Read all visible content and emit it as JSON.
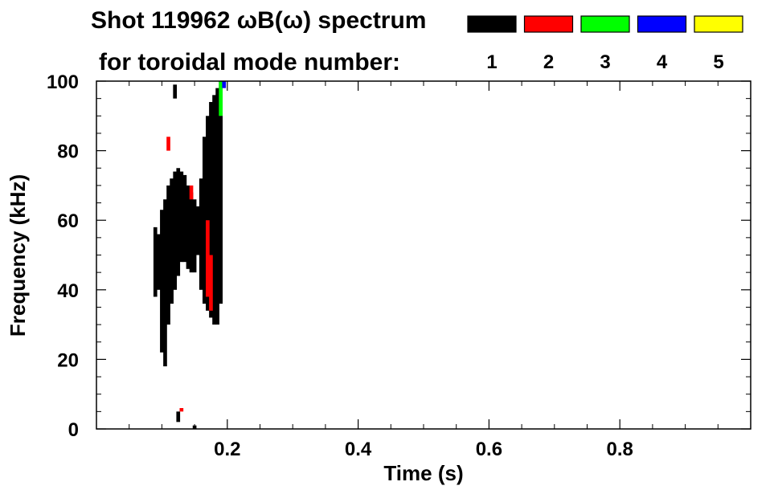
{
  "chart_data": {
    "type": "heatmap",
    "title_line1": "Shot 119962 ωB(ω) spectrum",
    "title_line2": "for toroidal mode number:",
    "xlabel": "Time (s)",
    "ylabel": "Frequency (kHz)",
    "xlim": [
      0,
      1.0
    ],
    "ylim": [
      0,
      100
    ],
    "x_ticks": [
      0.2,
      0.4,
      0.6,
      0.8
    ],
    "x_tick_labels": [
      "0.2",
      "0.4",
      "0.6",
      "0.8"
    ],
    "y_ticks": [
      0,
      20,
      40,
      60,
      80,
      100
    ],
    "y_tick_labels": [
      "0",
      "20",
      "40",
      "60",
      "80",
      "100"
    ],
    "legend": {
      "placement": "top-right",
      "entries": [
        {
          "label": "1",
          "color": "#000000"
        },
        {
          "label": "2",
          "color": "#ff0000"
        },
        {
          "label": "3",
          "color": "#00ff00"
        },
        {
          "label": "4",
          "color": "#0000ff"
        },
        {
          "label": "5",
          "color": "#ffff00"
        }
      ]
    },
    "series": [
      {
        "name": "1",
        "color": "#000000",
        "segments": [
          {
            "t": 0.09,
            "f": [
              38,
              58
            ]
          },
          {
            "t": 0.095,
            "f": [
              40,
              56
            ]
          },
          {
            "t": 0.1,
            "f": [
              22,
              63
            ]
          },
          {
            "t": 0.105,
            "f": [
              18,
              66
            ]
          },
          {
            "t": 0.11,
            "f": [
              30,
              70
            ]
          },
          {
            "t": 0.115,
            "f": [
              36,
              72
            ]
          },
          {
            "t": 0.12,
            "f": [
              40,
              74
            ]
          },
          {
            "t": 0.125,
            "f": [
              44,
              75
            ]
          },
          {
            "t": 0.13,
            "f": [
              48,
              74
            ]
          },
          {
            "t": 0.135,
            "f": [
              48,
              73
            ]
          },
          {
            "t": 0.14,
            "f": [
              46,
              70
            ]
          },
          {
            "t": 0.145,
            "f": [
              45,
              68
            ]
          },
          {
            "t": 0.15,
            "f": [
              45,
              66
            ]
          },
          {
            "t": 0.155,
            "f": [
              50,
              64
            ]
          },
          {
            "t": 0.16,
            "f": [
              40,
              72
            ]
          },
          {
            "t": 0.165,
            "f": [
              36,
              84
            ]
          },
          {
            "t": 0.17,
            "f": [
              34,
              90
            ]
          },
          {
            "t": 0.175,
            "f": [
              32,
              94
            ]
          },
          {
            "t": 0.18,
            "f": [
              30,
              96
            ]
          },
          {
            "t": 0.185,
            "f": [
              30,
              98
            ]
          },
          {
            "t": 0.19,
            "f": [
              36,
              100
            ]
          },
          {
            "t": 0.12,
            "f": [
              95,
              99
            ]
          },
          {
            "t": 0.125,
            "f": [
              2,
              5
            ]
          },
          {
            "t": 0.15,
            "f": [
              0,
              1
            ]
          }
        ]
      },
      {
        "name": "2",
        "color": "#ff0000",
        "segments": [
          {
            "t": 0.11,
            "f": [
              80,
              84
            ]
          },
          {
            "t": 0.13,
            "f": [
              5,
              6
            ]
          },
          {
            "t": 0.145,
            "f": [
              66,
              70
            ]
          },
          {
            "t": 0.17,
            "f": [
              38,
              60
            ]
          },
          {
            "t": 0.175,
            "f": [
              34,
              50
            ]
          }
        ]
      },
      {
        "name": "3",
        "color": "#00ff00",
        "segments": [
          {
            "t": 0.19,
            "f": [
              90,
              100
            ]
          }
        ]
      },
      {
        "name": "4",
        "color": "#0000ff",
        "segments": [
          {
            "t": 0.195,
            "f": [
              98,
              100
            ]
          }
        ]
      }
    ]
  }
}
